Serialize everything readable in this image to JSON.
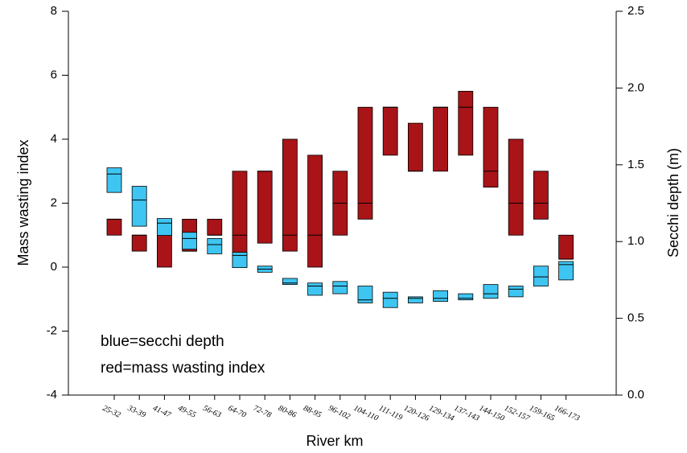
{
  "chart_data": {
    "type": "box",
    "xlabel": "River km",
    "ylabel": "Mass wasting index",
    "y2label": "Secchi depth (m)",
    "annotations": [
      "blue=secchi depth",
      "red=mass wasting index"
    ],
    "categories": [
      "25-32",
      "33-39",
      "41-47",
      "49-55",
      "56-63",
      "64-70",
      "72-78",
      "80-86",
      "88-95",
      "96-102",
      "104-110",
      "111-119",
      "120-126",
      "129-134",
      "137-143",
      "144-150",
      "152-157",
      "159-165",
      "166-173"
    ],
    "ylim": [
      -4,
      8
    ],
    "yticks": [
      -4,
      -2,
      0,
      2,
      4,
      6,
      8
    ],
    "y2lim": [
      0,
      2.5
    ],
    "y2ticks": [
      {
        "value": 0,
        "label": "0.0"
      },
      0.5,
      {
        "value": 1,
        "label": "1.0"
      },
      1.5,
      {
        "value": 2,
        "label": "2.0"
      },
      2.5
    ],
    "series": [
      {
        "color": "#a81417",
        "low": [
          1,
          0.5,
          0,
          0.5,
          1,
          0,
          0.75,
          0.5,
          0,
          1,
          1.5,
          3.5,
          3,
          3,
          3.5,
          2.5,
          1,
          1.5,
          0.25
        ],
        "high": [
          1.5,
          1,
          1.5,
          1.5,
          1.5,
          3,
          3,
          4,
          3.5,
          3,
          5,
          5,
          4.5,
          5,
          5.5,
          5,
          4,
          3,
          1
        ],
        "median": [
          1.5,
          1,
          1,
          0.5,
          1,
          1,
          3,
          1,
          1,
          2,
          2,
          5,
          3,
          5,
          5,
          3,
          2,
          2,
          0.25
        ]
      },
      {
        "color": "#3ec5f2",
        "axis": "y2",
        "low": [
          1.32,
          1.1,
          1.04,
          0.95,
          0.92,
          0.83,
          0.8,
          0.72,
          0.65,
          0.66,
          0.6,
          0.57,
          0.6,
          0.61,
          0.62,
          0.63,
          0.64,
          0.71,
          0.75
        ],
        "high": [
          1.48,
          1.36,
          1.15,
          1.06,
          1.02,
          0.93,
          0.84,
          0.76,
          0.73,
          0.74,
          0.71,
          0.67,
          0.64,
          0.68,
          0.66,
          0.72,
          0.71,
          0.84,
          0.87
        ],
        "median": [
          1.44,
          1.27,
          1.12,
          1.02,
          0.98,
          0.91,
          0.82,
          0.73,
          0.71,
          0.71,
          0.62,
          0.63,
          0.63,
          0.63,
          0.63,
          0.66,
          0.69,
          0.77,
          0.85
        ]
      }
    ]
  }
}
